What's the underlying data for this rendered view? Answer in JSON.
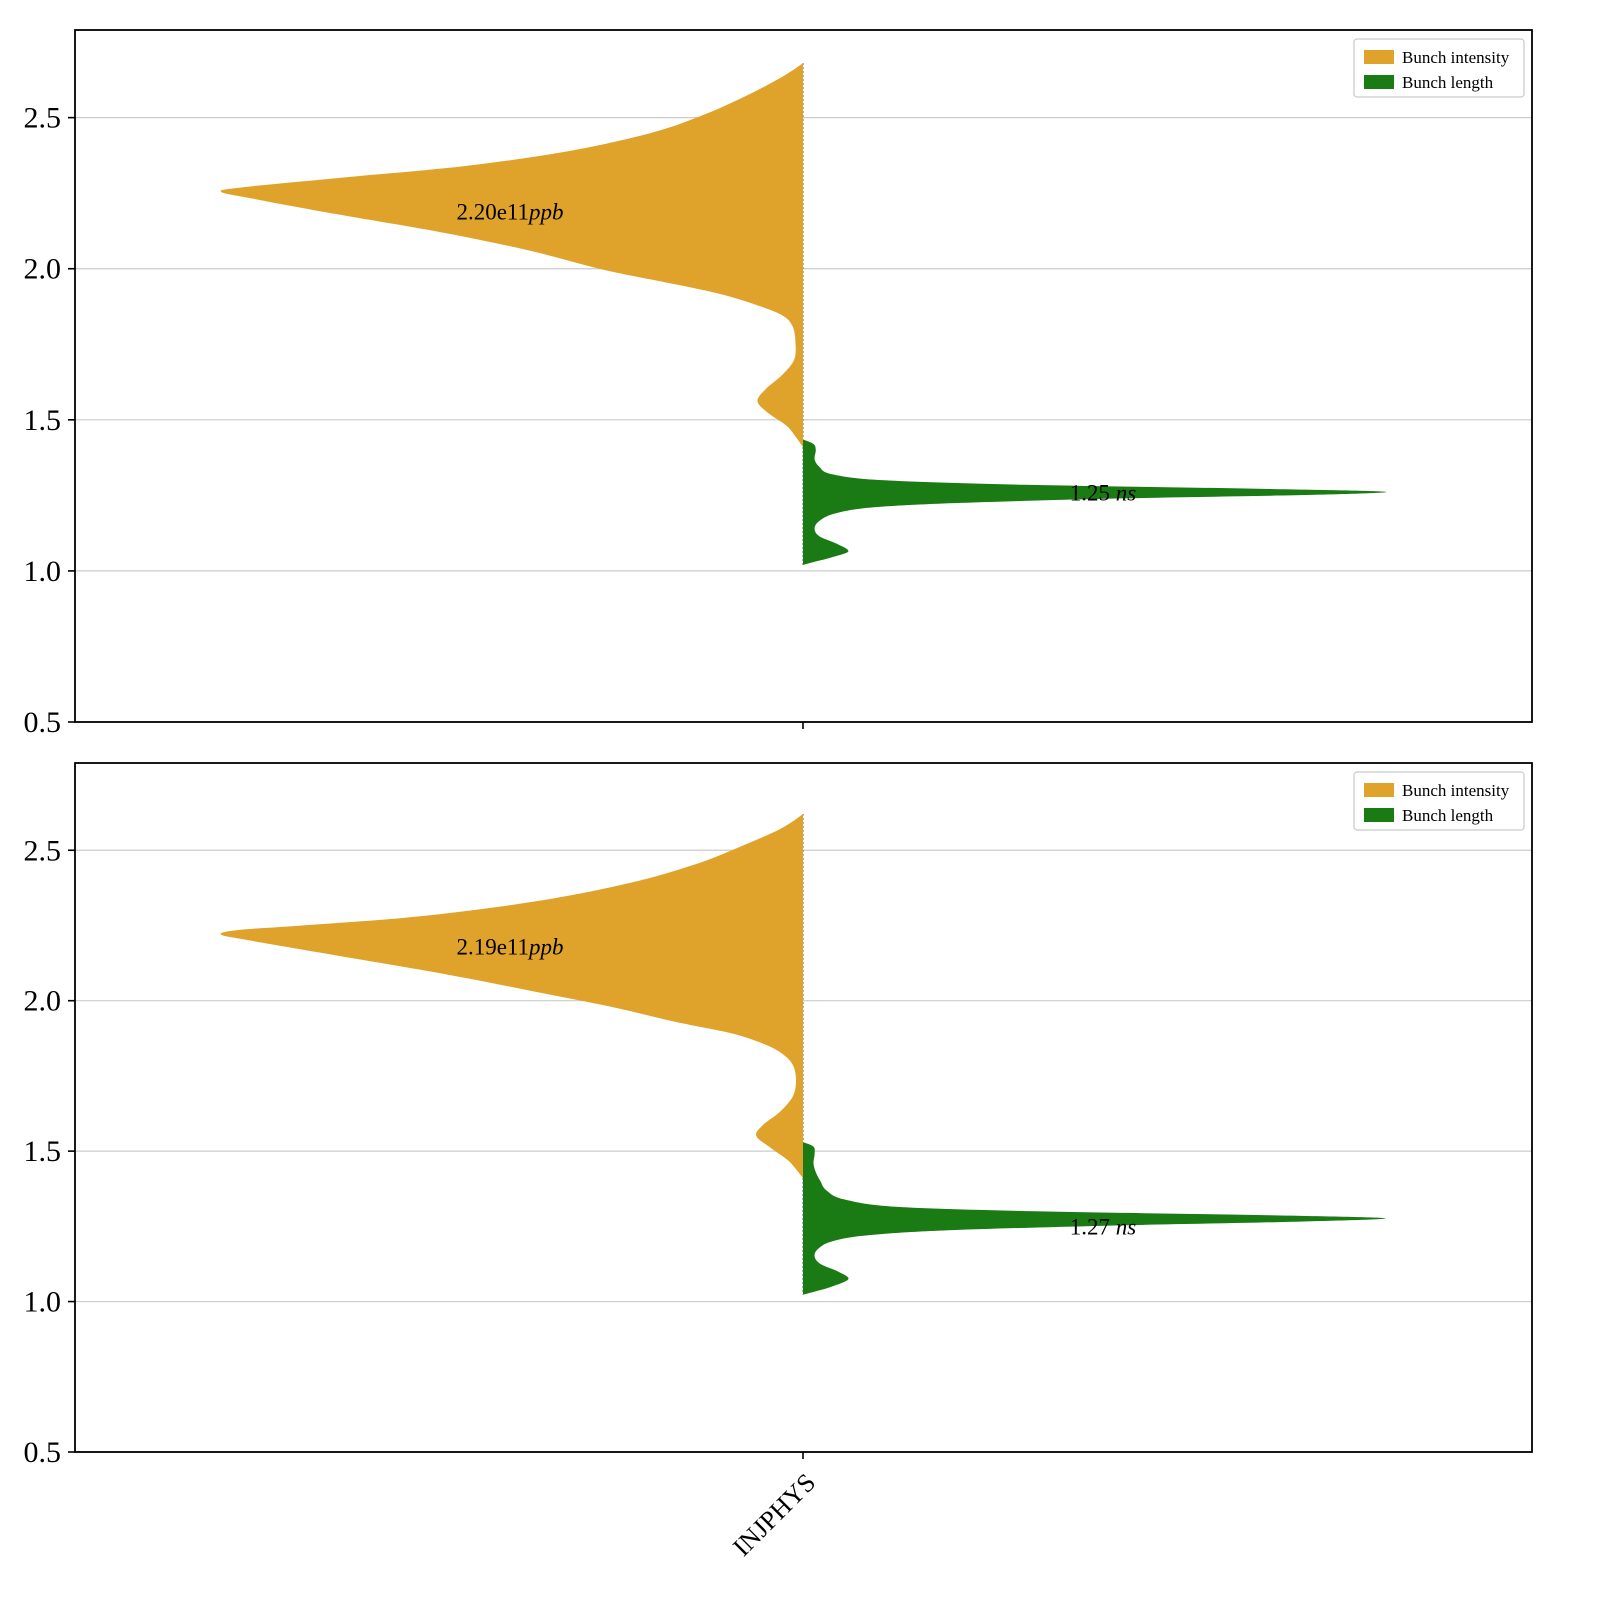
{
  "figure": {
    "background": "#ffffff",
    "grid_color": "#cccccc",
    "frame_color": "#000000"
  },
  "x_axis": {
    "tick_label": "INJPHYS"
  },
  "legend": {
    "position": "upper right",
    "entries": [
      {
        "label": "Bunch intensity",
        "color": "#dfa32b"
      },
      {
        "label": "Bunch length",
        "color": "#1a7a14"
      }
    ]
  },
  "chart_data": [
    {
      "type": "violin",
      "panel": "top",
      "x_categories": [
        "INJPHYS"
      ],
      "ylim": [
        0.5,
        2.79
      ],
      "yticks": [
        0.5,
        1.0,
        1.5,
        2.0,
        2.5
      ],
      "grid": true,
      "series": [
        {
          "name": "Bunch intensity",
          "side": "left",
          "color": "#dfa32b",
          "annotation_value": "2.20e11",
          "annotation_unit": "ppb",
          "annotation_y": 2.19,
          "peak_y": 2.26,
          "profile": [
            [
              2.68,
              0
            ],
            [
              2.63,
              0.04
            ],
            [
              2.57,
              0.1
            ],
            [
              2.51,
              0.17
            ],
            [
              2.45,
              0.26
            ],
            [
              2.39,
              0.4
            ],
            [
              2.34,
              0.58
            ],
            [
              2.3,
              0.8
            ],
            [
              2.27,
              0.96
            ],
            [
              2.255,
              1.0
            ],
            [
              2.23,
              0.94
            ],
            [
              2.18,
              0.8
            ],
            [
              2.12,
              0.62
            ],
            [
              2.06,
              0.47
            ],
            [
              2.0,
              0.35
            ],
            [
              1.96,
              0.25
            ],
            [
              1.92,
              0.15
            ],
            [
              1.88,
              0.08
            ],
            [
              1.845,
              0.035
            ],
            [
              1.81,
              0.018
            ],
            [
              1.76,
              0.013
            ],
            [
              1.7,
              0.015
            ],
            [
              1.65,
              0.035
            ],
            [
              1.6,
              0.065
            ],
            [
              1.56,
              0.078
            ],
            [
              1.52,
              0.058
            ],
            [
              1.48,
              0.028
            ],
            [
              1.445,
              0.013
            ],
            [
              1.41,
              0
            ]
          ]
        },
        {
          "name": "Bunch length",
          "side": "right",
          "color": "#1a7a14",
          "annotation_value": "1.25",
          "annotation_unit": " ns",
          "annotation_y": 1.26,
          "peak_y": 1.26,
          "profile": [
            [
              1.435,
              0
            ],
            [
              1.42,
              0.018
            ],
            [
              1.4,
              0.022
            ],
            [
              1.37,
              0.02
            ],
            [
              1.345,
              0.028
            ],
            [
              1.32,
              0.05
            ],
            [
              1.3,
              0.14
            ],
            [
              1.285,
              0.38
            ],
            [
              1.272,
              0.78
            ],
            [
              1.262,
              1.0
            ],
            [
              1.252,
              0.88
            ],
            [
              1.24,
              0.55
            ],
            [
              1.225,
              0.27
            ],
            [
              1.21,
              0.12
            ],
            [
              1.19,
              0.055
            ],
            [
              1.165,
              0.028
            ],
            [
              1.14,
              0.02
            ],
            [
              1.115,
              0.028
            ],
            [
              1.09,
              0.058
            ],
            [
              1.065,
              0.078
            ],
            [
              1.045,
              0.05
            ],
            [
              1.03,
              0.02
            ],
            [
              1.02,
              0
            ]
          ]
        }
      ]
    },
    {
      "type": "violin",
      "panel": "bottom",
      "x_categories": [
        "INJPHYS"
      ],
      "ylim": [
        0.5,
        2.79
      ],
      "yticks": [
        0.5,
        1.0,
        1.5,
        2.0,
        2.5
      ],
      "grid": true,
      "series": [
        {
          "name": "Bunch intensity",
          "side": "left",
          "color": "#dfa32b",
          "annotation_value": "2.19e11",
          "annotation_unit": "ppb",
          "annotation_y": 2.18,
          "peak_y": 2.22,
          "profile": [
            [
              2.62,
              0
            ],
            [
              2.57,
              0.04
            ],
            [
              2.51,
              0.11
            ],
            [
              2.45,
              0.19
            ],
            [
              2.39,
              0.3
            ],
            [
              2.33,
              0.46
            ],
            [
              2.28,
              0.66
            ],
            [
              2.25,
              0.86
            ],
            [
              2.235,
              0.97
            ],
            [
              2.22,
              1.0
            ],
            [
              2.2,
              0.95
            ],
            [
              2.15,
              0.8
            ],
            [
              2.09,
              0.62
            ],
            [
              2.03,
              0.46
            ],
            [
              1.98,
              0.33
            ],
            [
              1.93,
              0.22
            ],
            [
              1.89,
              0.12
            ],
            [
              1.85,
              0.06
            ],
            [
              1.815,
              0.03
            ],
            [
              1.78,
              0.016
            ],
            [
              1.73,
              0.012
            ],
            [
              1.68,
              0.018
            ],
            [
              1.63,
              0.04
            ],
            [
              1.585,
              0.07
            ],
            [
              1.55,
              0.08
            ],
            [
              1.51,
              0.055
            ],
            [
              1.47,
              0.026
            ],
            [
              1.44,
              0.012
            ],
            [
              1.41,
              0
            ]
          ]
        },
        {
          "name": "Bunch length",
          "side": "right",
          "color": "#1a7a14",
          "annotation_value": "1.27",
          "annotation_unit": " ns",
          "annotation_y": 1.25,
          "peak_y": 1.277,
          "profile": [
            [
              1.53,
              0
            ],
            [
              1.515,
              0.018
            ],
            [
              1.49,
              0.02
            ],
            [
              1.46,
              0.018
            ],
            [
              1.43,
              0.022
            ],
            [
              1.4,
              0.03
            ],
            [
              1.37,
              0.04
            ],
            [
              1.34,
              0.07
            ],
            [
              1.315,
              0.16
            ],
            [
              1.3,
              0.4
            ],
            [
              1.287,
              0.8
            ],
            [
              1.277,
              1.0
            ],
            [
              1.266,
              0.86
            ],
            [
              1.252,
              0.52
            ],
            [
              1.237,
              0.25
            ],
            [
              1.22,
              0.11
            ],
            [
              1.2,
              0.05
            ],
            [
              1.175,
              0.026
            ],
            [
              1.15,
              0.02
            ],
            [
              1.125,
              0.03
            ],
            [
              1.1,
              0.06
            ],
            [
              1.075,
              0.078
            ],
            [
              1.05,
              0.05
            ],
            [
              1.033,
              0.02
            ],
            [
              1.023,
              0
            ]
          ]
        }
      ]
    }
  ]
}
